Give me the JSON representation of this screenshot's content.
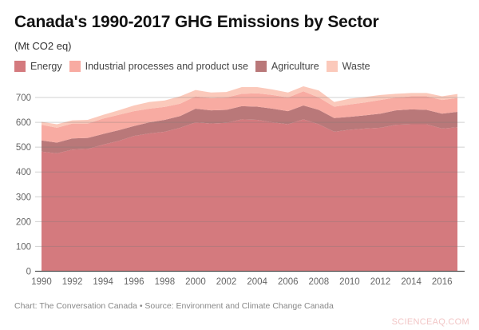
{
  "chart_data": {
    "type": "area",
    "stacked": true,
    "title": "Canada's 1990-2017 GHG Emissions by Sector",
    "subtitle": "(Mt CO2 eq)",
    "ylim": [
      0,
      700
    ],
    "y_ticks": [
      0,
      100,
      200,
      300,
      400,
      500,
      600,
      700
    ],
    "x_ticks": [
      1990,
      1992,
      1994,
      1996,
      1998,
      2000,
      2002,
      2004,
      2006,
      2008,
      2010,
      2012,
      2014,
      2016
    ],
    "grid": true,
    "legend_position": "top-left",
    "x": [
      1990,
      1991,
      1992,
      1993,
      1994,
      1995,
      1996,
      1997,
      1998,
      1999,
      2000,
      2001,
      2002,
      2003,
      2004,
      2005,
      2006,
      2007,
      2008,
      2009,
      2010,
      2011,
      2012,
      2013,
      2014,
      2015,
      2016,
      2017
    ],
    "legend_order": [
      "Energy",
      "Industrial processes and product use",
      "Agriculture",
      "Waste"
    ],
    "series": [
      {
        "name": "Energy",
        "color": "#d47a7e",
        "values": [
          482,
          475,
          490,
          493,
          510,
          525,
          545,
          555,
          562,
          578,
          600,
          595,
          598,
          612,
          610,
          600,
          592,
          612,
          592,
          562,
          570,
          575,
          578,
          590,
          592,
          592,
          575,
          580
        ]
      },
      {
        "name": "Agriculture",
        "color": "#b97879",
        "values": [
          45,
          43,
          45,
          44,
          43,
          43,
          40,
          45,
          48,
          47,
          55,
          53,
          52,
          53,
          53,
          55,
          53,
          56,
          58,
          55,
          52,
          53,
          57,
          58,
          60,
          58,
          60,
          62
        ]
      },
      {
        "name": "Industrial processes and product use",
        "color": "#f8aba2",
        "values": [
          63,
          60,
          60,
          58,
          62,
          62,
          60,
          55,
          52,
          50,
          50,
          49,
          50,
          50,
          54,
          55,
          55,
          57,
          50,
          46,
          50,
          52,
          55,
          52,
          53,
          55,
          55,
          56
        ]
      },
      {
        "name": "Waste",
        "color": "#fbc9bb",
        "values": [
          12,
          14,
          13,
          15,
          15,
          18,
          23,
          27,
          26,
          30,
          25,
          23,
          22,
          27,
          25,
          22,
          20,
          20,
          28,
          19,
          23,
          22,
          20,
          15,
          13,
          13,
          15,
          16
        ]
      }
    ]
  },
  "footer": "Chart: The Conversation Canada • Source: Environment and Climate Change Canada",
  "watermark": "SCIENCEAQ.COM"
}
